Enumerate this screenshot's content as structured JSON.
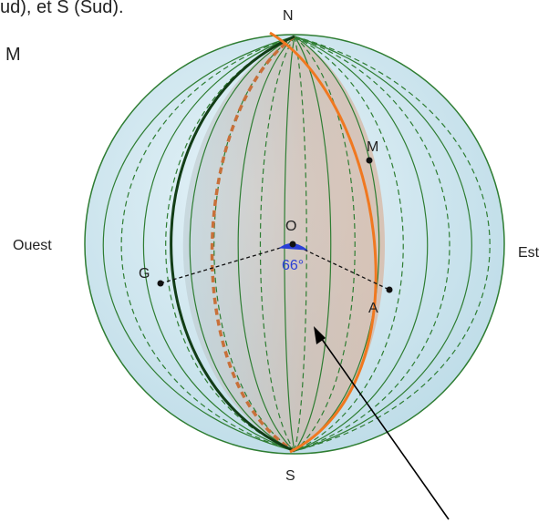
{
  "header_text": "ud), et S (Sud).",
  "corner_label": "M",
  "poles": {
    "north": "N",
    "south": "S"
  },
  "directions": {
    "west": "Ouest",
    "east": "Est"
  },
  "points": {
    "center": "O",
    "m": "M",
    "g": "G",
    "a": "A"
  },
  "angle_label": "66°",
  "colors": {
    "sphere_fill": "#cfe6f0",
    "meridian": "#2e7d32",
    "highlight_meridian": "#f07820",
    "dashed_highlight": "#c8703a",
    "wedge_fill": "#d9b9a6",
    "angle": "#2a3fd6",
    "pointer": "#000000"
  }
}
